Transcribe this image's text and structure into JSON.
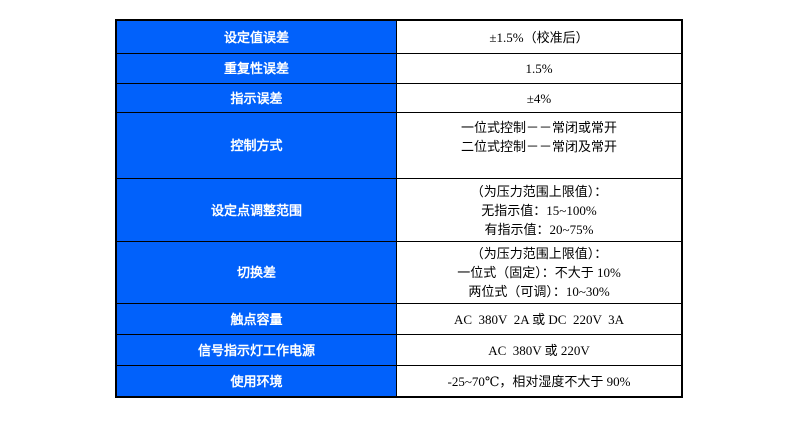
{
  "table": {
    "rows": [
      {
        "label": "设定值误差",
        "value": "±1.5%（校准后）"
      },
      {
        "label": "重复性误差",
        "value": "1.5%"
      },
      {
        "label": "指示误差",
        "value": "±4%"
      },
      {
        "label": "控制方式",
        "value": "一位式控制－－常闭或常开\n二位式控制－－常闭及常开"
      },
      {
        "label": "设定点调整范围",
        "value": "（为压力范围上限值）：\n无指示值：15~100%\n有指示值：20~75%"
      },
      {
        "label": "切换差",
        "value": "（为压力范围上限值）：\n一位式（固定）：不大于 10%\n两位式（可调）：10~30%"
      },
      {
        "label": "触点容量",
        "value": "AC  380V  2A 或 DC  220V  3A"
      },
      {
        "label": "信号指示灯工作电源",
        "value": "AC  380V 或 220V"
      },
      {
        "label": "使用环境",
        "value": "-25~70℃，相对湿度不大于 90%"
      }
    ]
  },
  "colors": {
    "header_blue": "#0161FB",
    "border": "#000000",
    "label_text": "#ffffff",
    "value_text": "#000000",
    "page_bg": "#ffffff"
  }
}
